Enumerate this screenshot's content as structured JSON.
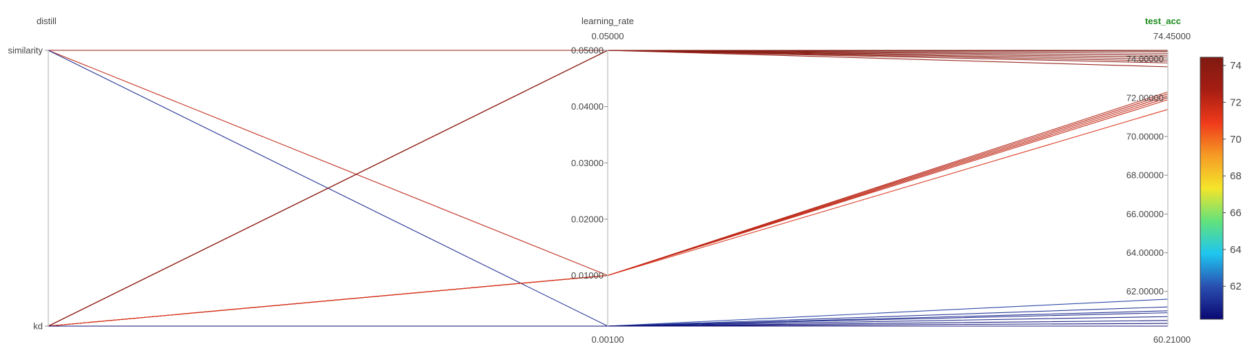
{
  "chart_data": {
    "type": "parallel_coordinates",
    "color_variable": "test_acc",
    "colorscale": [
      "#0b0873",
      "#2a4fb0",
      "#1ec6f0",
      "#63e27a",
      "#f5e52a",
      "#f59b25",
      "#ef3a1a",
      "#a61d13",
      "#7f1a12"
    ],
    "color_range": [
      60.21,
      74.45
    ],
    "dimensions": [
      {
        "name": "distill",
        "highlight": false,
        "kind": "categorical",
        "categories": [
          "kd",
          "similarity"
        ],
        "tick_labels": [
          "kd",
          "similarity"
        ],
        "range_labels": [],
        "range": [
          0,
          1
        ]
      },
      {
        "name": "learning_rate",
        "highlight": false,
        "kind": "numeric",
        "range": [
          0.001,
          0.05
        ],
        "range_labels": [
          "0.05000",
          "0.00100"
        ],
        "ticks": [
          0.01,
          0.02,
          0.03,
          0.04,
          0.05
        ],
        "tick_labels": [
          "0.01000",
          "0.02000",
          "0.03000",
          "0.04000",
          "0.05000"
        ]
      },
      {
        "name": "test_acc",
        "highlight": true,
        "kind": "numeric",
        "range": [
          60.21,
          74.45
        ],
        "range_labels": [
          "74.45000",
          "60.21000"
        ],
        "ticks": [
          62,
          64,
          66,
          68,
          70,
          72,
          74
        ],
        "tick_labels": [
          "62.00000",
          "64.00000",
          "66.00000",
          "68.00000",
          "70.00000",
          "72.00000",
          "74.00000"
        ]
      }
    ],
    "runs": [
      {
        "distill": "similarity",
        "learning_rate": 0.05,
        "test_acc": 74.45
      },
      {
        "distill": "similarity",
        "learning_rate": 0.05,
        "test_acc": 74.3
      },
      {
        "distill": "similarity",
        "learning_rate": 0.05,
        "test_acc": 74.1
      },
      {
        "distill": "similarity",
        "learning_rate": 0.05,
        "test_acc": 73.9
      },
      {
        "distill": "similarity",
        "learning_rate": 0.05,
        "test_acc": 73.6
      },
      {
        "distill": "similarity",
        "learning_rate": 0.01,
        "test_acc": 72.1
      },
      {
        "distill": "similarity",
        "learning_rate": 0.001,
        "test_acc": 61.0
      },
      {
        "distill": "kd",
        "learning_rate": 0.05,
        "test_acc": 74.4
      },
      {
        "distill": "kd",
        "learning_rate": 0.05,
        "test_acc": 74.2
      },
      {
        "distill": "kd",
        "learning_rate": 0.05,
        "test_acc": 74.0
      },
      {
        "distill": "kd",
        "learning_rate": 0.05,
        "test_acc": 73.8
      },
      {
        "distill": "kd",
        "learning_rate": 0.01,
        "test_acc": 72.3
      },
      {
        "distill": "kd",
        "learning_rate": 0.01,
        "test_acc": 72.2
      },
      {
        "distill": "kd",
        "learning_rate": 0.01,
        "test_acc": 72.0
      },
      {
        "distill": "kd",
        "learning_rate": 0.01,
        "test_acc": 71.9
      },
      {
        "distill": "kd",
        "learning_rate": 0.01,
        "test_acc": 71.4
      },
      {
        "distill": "kd",
        "learning_rate": 0.001,
        "test_acc": 61.6
      },
      {
        "distill": "kd",
        "learning_rate": 0.001,
        "test_acc": 61.2
      },
      {
        "distill": "kd",
        "learning_rate": 0.001,
        "test_acc": 60.9
      },
      {
        "distill": "kd",
        "learning_rate": 0.001,
        "test_acc": 60.7
      },
      {
        "distill": "kd",
        "learning_rate": 0.001,
        "test_acc": 60.5
      },
      {
        "distill": "kd",
        "learning_rate": 0.001,
        "test_acc": 60.35
      },
      {
        "distill": "kd",
        "learning_rate": 0.001,
        "test_acc": 60.21
      }
    ],
    "colorbar": {
      "ticks": [
        62,
        64,
        66,
        68,
        70,
        72,
        74
      ],
      "tick_labels": [
        "62",
        "64",
        "66",
        "68",
        "70",
        "72",
        "74"
      ]
    }
  }
}
